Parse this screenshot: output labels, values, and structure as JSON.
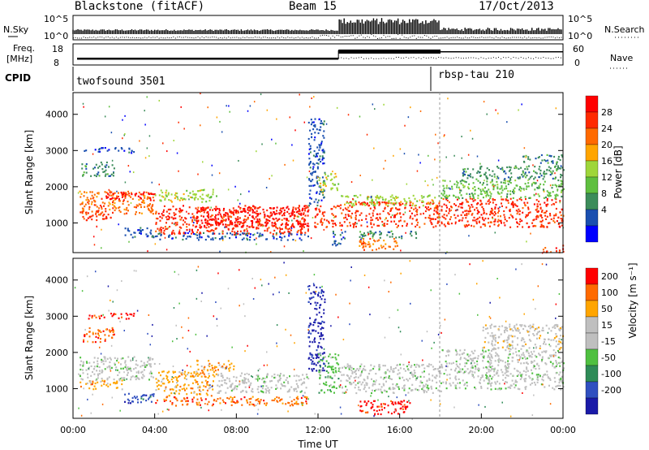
{
  "header": {
    "station": "Blackstone (fitACF)",
    "beam": "Beam 15",
    "date": "17/Oct/2013"
  },
  "strip_labels": {
    "nsky": "N.Sky",
    "nsearch": "N.Search",
    "freq_line1": "Freq.",
    "freq_line2": "[MHz]",
    "nave": "Nave",
    "cpid": "CPID",
    "noise_left_ticks": [
      "10^5",
      "10^0"
    ],
    "noise_right_ticks": [
      "10^5",
      "10^0"
    ],
    "freq_ticks": [
      "18",
      "8"
    ],
    "nave_ticks": [
      "60",
      "0"
    ]
  },
  "cpid_programs": [
    {
      "name": "twofsound 3501",
      "start_hour": 0
    },
    {
      "name": "rbsp-tau 210",
      "start_hour": 18
    }
  ],
  "colors": {
    "power": [
      "#0000ff",
      "#1a4fb0",
      "#3c8c5a",
      "#5fbf3f",
      "#9fd63a",
      "#ffa500",
      "#ff6a00",
      "#ff2a00",
      "#ff0000"
    ],
    "velocity": [
      "#1a1aa8",
      "#3050c0",
      "#2e8b57",
      "#4fc040",
      "#bfbfbf",
      "#bfbfbf",
      "#ffa500",
      "#ff6a00",
      "#ff0000"
    ]
  },
  "chart_data": [
    {
      "type": "heatmap",
      "name": "power",
      "ylabel": "Slant Range [km]",
      "colorbar_label": "Power [dB]",
      "colorbar_ticks": [
        "28",
        "24",
        "20",
        "16",
        "12",
        "8",
        "4"
      ],
      "xlim": [
        0,
        24
      ],
      "ylim": [
        180,
        4600
      ],
      "yticks": [
        1000,
        2000,
        3000,
        4000
      ],
      "bands": [
        {
          "t0": 0.3,
          "t1": 4.0,
          "r0": 1250,
          "r1": 1900,
          "level": 6
        },
        {
          "t0": 0.3,
          "t1": 2.0,
          "r0": 1100,
          "r1": 1350,
          "level": 7
        },
        {
          "t0": 1.5,
          "t1": 4.0,
          "r0": 1650,
          "r1": 1900,
          "level": 8
        },
        {
          "t0": 0.4,
          "t1": 2.0,
          "r0": 2300,
          "r1": 2700,
          "level": 2
        },
        {
          "t0": 0.5,
          "t1": 3.0,
          "r0": 2950,
          "r1": 3100,
          "level": 1
        },
        {
          "t0": 2.5,
          "t1": 4.0,
          "r0": 600,
          "r1": 900,
          "level": 1
        },
        {
          "t0": 4.0,
          "t1": 7.0,
          "r0": 1600,
          "r1": 1950,
          "level": 4
        },
        {
          "t0": 4.0,
          "t1": 11.5,
          "r0": 700,
          "r1": 1500,
          "level": 7
        },
        {
          "t0": 6.0,
          "t1": 11.5,
          "r0": 900,
          "r1": 1450,
          "level": 8
        },
        {
          "t0": 4.0,
          "t1": 11.5,
          "r0": 550,
          "r1": 750,
          "level": 1
        },
        {
          "t0": 11.5,
          "t1": 12.3,
          "r0": 1500,
          "r1": 3900,
          "level": 1
        },
        {
          "t0": 11.8,
          "t1": 13.0,
          "r0": 900,
          "r1": 1500,
          "level": 7
        },
        {
          "t0": 12.0,
          "t1": 13.0,
          "r0": 1900,
          "r1": 2400,
          "level": 4
        },
        {
          "t0": 12.6,
          "t1": 13.3,
          "r0": 400,
          "r1": 800,
          "level": 1
        },
        {
          "t0": 13.0,
          "t1": 18.0,
          "r0": 900,
          "r1": 1600,
          "level": 7
        },
        {
          "t0": 13.0,
          "t1": 18.0,
          "r0": 1500,
          "r1": 1800,
          "level": 4
        },
        {
          "t0": 14.0,
          "t1": 16.0,
          "r0": 250,
          "r1": 600,
          "level": 6
        },
        {
          "t0": 14.0,
          "t1": 17.0,
          "r0": 600,
          "r1": 800,
          "level": 2
        },
        {
          "t0": 18.0,
          "t1": 24.0,
          "r0": 900,
          "r1": 1700,
          "level": 7
        },
        {
          "t0": 18.0,
          "t1": 24.0,
          "r0": 1700,
          "r1": 2200,
          "level": 3
        },
        {
          "t0": 19.0,
          "t1": 24.0,
          "r0": 2200,
          "r1": 2600,
          "level": 2
        },
        {
          "t0": 22.0,
          "t1": 24.0,
          "r0": 2650,
          "r1": 2900,
          "level": 2
        },
        {
          "t0": 23.0,
          "t1": 24.0,
          "r0": 200,
          "r1": 400,
          "level": 7
        }
      ]
    },
    {
      "type": "heatmap",
      "name": "velocity",
      "ylabel": "Slant Range [km]",
      "xlabel": "Time UT",
      "colorbar_label": "Velocity [m s⁻¹]",
      "colorbar_ticks": [
        "200",
        "100",
        "50",
        "15",
        "-15",
        "-50",
        "-100",
        "-200"
      ],
      "xlim": [
        0,
        24
      ],
      "ylim": [
        180,
        4600
      ],
      "yticks": [
        1000,
        2000,
        3000,
        4000
      ],
      "xticks": [
        "00:00",
        "04:00",
        "08:00",
        "12:00",
        "16:00",
        "20:00",
        "00:00"
      ],
      "bands": [
        {
          "t0": 0.3,
          "t1": 4.0,
          "r0": 1250,
          "r1": 1900,
          "level": 4
        },
        {
          "t0": 0.3,
          "t1": 2.5,
          "r0": 1000,
          "r1": 1250,
          "level": 6
        },
        {
          "t0": 0.5,
          "t1": 3.0,
          "r0": 2950,
          "r1": 3100,
          "level": 8
        },
        {
          "t0": 0.4,
          "t1": 2.0,
          "r0": 2300,
          "r1": 2700,
          "level": 7
        },
        {
          "t0": 2.5,
          "t1": 4.0,
          "r0": 600,
          "r1": 900,
          "level": 1
        },
        {
          "t0": 4.0,
          "t1": 7.0,
          "r0": 800,
          "r1": 1500,
          "level": 6
        },
        {
          "t0": 7.0,
          "t1": 11.5,
          "r0": 900,
          "r1": 1450,
          "level": 4
        },
        {
          "t0": 4.0,
          "t1": 11.5,
          "r0": 550,
          "r1": 800,
          "level": 7
        },
        {
          "t0": 6.0,
          "t1": 8.0,
          "r0": 1500,
          "r1": 1800,
          "level": 6
        },
        {
          "t0": 11.5,
          "t1": 12.3,
          "r0": 1500,
          "r1": 3900,
          "level": 0
        },
        {
          "t0": 12.0,
          "t1": 13.0,
          "r0": 900,
          "r1": 2000,
          "level": 3
        },
        {
          "t0": 13.0,
          "t1": 18.0,
          "r0": 900,
          "r1": 1700,
          "level": 4
        },
        {
          "t0": 14.0,
          "t1": 16.5,
          "r0": 300,
          "r1": 700,
          "level": 8
        },
        {
          "t0": 18.0,
          "t1": 24.0,
          "r0": 1000,
          "r1": 2100,
          "level": 4
        },
        {
          "t0": 20.0,
          "t1": 24.0,
          "r0": 2100,
          "r1": 2800,
          "level": 5
        }
      ]
    }
  ]
}
